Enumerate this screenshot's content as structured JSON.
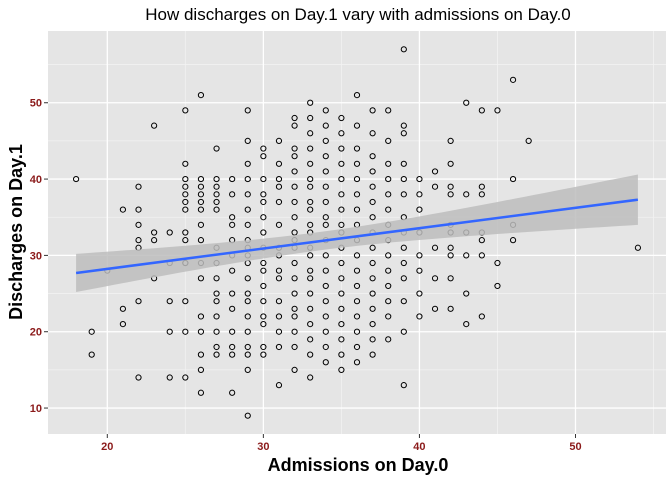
{
  "chart_data": {
    "type": "scatter",
    "title": "How discharges on Day.1 vary with admissions on Day.0",
    "xlabel": "Admissions on Day.0",
    "ylabel": "Discharges on Day.1",
    "xlim": [
      16.2,
      55.8
    ],
    "ylim": [
      6.6,
      59.4
    ],
    "xticks": [
      20,
      30,
      40,
      50
    ],
    "yticks": [
      10,
      20,
      30,
      40,
      50
    ],
    "grid": true,
    "legend": "none",
    "colors": {
      "panel": "#e5e5e5",
      "grid_major": "#ffffff",
      "point_stroke": "#000000",
      "fit_line": "#3366ff",
      "ribbon": "#bdbdbd",
      "tick_label": "#8b1a1a"
    },
    "fit": {
      "x": [
        18,
        54
      ],
      "y": [
        27.7,
        37.3
      ],
      "ci_lower": [
        25.2,
        34.0
      ],
      "ci_upper": [
        30.3,
        40.7
      ]
    },
    "points": [
      [
        18,
        40
      ],
      [
        19,
        20
      ],
      [
        19,
        17
      ],
      [
        20,
        28
      ],
      [
        21,
        36
      ],
      [
        21,
        23
      ],
      [
        21,
        21
      ],
      [
        22,
        39
      ],
      [
        22,
        36
      ],
      [
        22,
        34
      ],
      [
        22,
        32
      ],
      [
        22,
        31
      ],
      [
        22,
        24
      ],
      [
        22,
        14
      ],
      [
        23,
        47
      ],
      [
        23,
        33
      ],
      [
        23,
        32
      ],
      [
        23,
        27
      ],
      [
        24,
        33
      ],
      [
        24,
        24
      ],
      [
        24,
        20
      ],
      [
        24,
        14
      ],
      [
        24,
        29
      ],
      [
        25,
        49
      ],
      [
        25,
        42
      ],
      [
        25,
        40
      ],
      [
        25,
        39
      ],
      [
        25,
        38
      ],
      [
        25,
        37
      ],
      [
        25,
        36
      ],
      [
        25,
        33
      ],
      [
        25,
        32
      ],
      [
        25,
        29
      ],
      [
        25,
        24
      ],
      [
        25,
        20
      ],
      [
        25,
        14
      ],
      [
        25,
        29
      ],
      [
        26,
        51
      ],
      [
        26,
        40
      ],
      [
        26,
        39
      ],
      [
        26,
        38
      ],
      [
        26,
        37
      ],
      [
        26,
        36
      ],
      [
        26,
        34
      ],
      [
        26,
        32
      ],
      [
        26,
        29
      ],
      [
        26,
        27
      ],
      [
        26,
        22
      ],
      [
        26,
        20
      ],
      [
        26,
        17
      ],
      [
        26,
        15
      ],
      [
        26,
        12
      ],
      [
        27,
        44
      ],
      [
        27,
        40
      ],
      [
        27,
        39
      ],
      [
        27,
        38
      ],
      [
        27,
        37
      ],
      [
        27,
        36
      ],
      [
        27,
        31
      ],
      [
        27,
        29
      ],
      [
        27,
        27
      ],
      [
        27,
        25
      ],
      [
        27,
        24
      ],
      [
        27,
        22
      ],
      [
        27,
        20
      ],
      [
        27,
        18
      ],
      [
        27,
        17
      ],
      [
        28,
        40
      ],
      [
        28,
        38
      ],
      [
        28,
        35
      ],
      [
        28,
        34
      ],
      [
        28,
        32
      ],
      [
        28,
        30
      ],
      [
        28,
        28
      ],
      [
        28,
        25
      ],
      [
        28,
        23
      ],
      [
        28,
        20
      ],
      [
        28,
        18
      ],
      [
        28,
        17
      ],
      [
        28,
        12
      ],
      [
        29,
        49
      ],
      [
        29,
        45
      ],
      [
        29,
        42
      ],
      [
        29,
        40
      ],
      [
        29,
        38
      ],
      [
        29,
        36
      ],
      [
        29,
        34
      ],
      [
        29,
        32
      ],
      [
        29,
        31
      ],
      [
        29,
        30
      ],
      [
        29,
        29
      ],
      [
        29,
        27
      ],
      [
        29,
        25
      ],
      [
        29,
        24
      ],
      [
        29,
        22
      ],
      [
        29,
        20
      ],
      [
        29,
        18
      ],
      [
        29,
        17
      ],
      [
        29,
        15
      ],
      [
        29,
        9
      ],
      [
        30,
        44
      ],
      [
        30,
        43
      ],
      [
        30,
        40
      ],
      [
        30,
        38
      ],
      [
        30,
        37
      ],
      [
        30,
        35
      ],
      [
        30,
        33
      ],
      [
        30,
        31
      ],
      [
        30,
        29
      ],
      [
        30,
        28
      ],
      [
        30,
        26
      ],
      [
        30,
        24
      ],
      [
        30,
        22
      ],
      [
        30,
        21
      ],
      [
        30,
        18
      ],
      [
        30,
        17
      ],
      [
        31,
        45
      ],
      [
        31,
        42
      ],
      [
        31,
        40
      ],
      [
        31,
        39
      ],
      [
        31,
        37
      ],
      [
        31,
        34
      ],
      [
        31,
        31
      ],
      [
        31,
        30
      ],
      [
        31,
        28
      ],
      [
        31,
        27
      ],
      [
        31,
        24
      ],
      [
        31,
        22
      ],
      [
        31,
        20
      ],
      [
        31,
        18
      ],
      [
        31,
        13
      ],
      [
        32,
        48
      ],
      [
        32,
        47
      ],
      [
        32,
        44
      ],
      [
        32,
        43
      ],
      [
        32,
        41
      ],
      [
        32,
        39
      ],
      [
        32,
        37
      ],
      [
        32,
        35
      ],
      [
        32,
        33
      ],
      [
        32,
        32
      ],
      [
        32,
        31
      ],
      [
        32,
        29
      ],
      [
        32,
        27
      ],
      [
        32,
        25
      ],
      [
        32,
        23
      ],
      [
        32,
        22
      ],
      [
        32,
        20
      ],
      [
        32,
        18
      ],
      [
        32,
        15
      ],
      [
        33,
        50
      ],
      [
        33,
        48
      ],
      [
        33,
        46
      ],
      [
        33,
        44
      ],
      [
        33,
        42
      ],
      [
        33,
        40
      ],
      [
        33,
        39
      ],
      [
        33,
        37
      ],
      [
        33,
        36
      ],
      [
        33,
        34
      ],
      [
        33,
        33
      ],
      [
        33,
        31
      ],
      [
        33,
        30
      ],
      [
        33,
        28
      ],
      [
        33,
        27
      ],
      [
        33,
        25
      ],
      [
        33,
        23
      ],
      [
        33,
        21
      ],
      [
        33,
        19
      ],
      [
        33,
        17
      ],
      [
        33,
        14
      ],
      [
        34,
        49
      ],
      [
        34,
        47
      ],
      [
        34,
        45
      ],
      [
        34,
        43
      ],
      [
        34,
        41
      ],
      [
        34,
        39
      ],
      [
        34,
        37
      ],
      [
        34,
        35
      ],
      [
        34,
        34
      ],
      [
        34,
        32
      ],
      [
        34,
        30
      ],
      [
        34,
        28
      ],
      [
        34,
        26
      ],
      [
        34,
        24
      ],
      [
        34,
        22
      ],
      [
        34,
        20
      ],
      [
        34,
        18
      ],
      [
        34,
        16
      ],
      [
        35,
        48
      ],
      [
        35,
        46
      ],
      [
        35,
        44
      ],
      [
        35,
        42
      ],
      [
        35,
        40
      ],
      [
        35,
        38
      ],
      [
        35,
        36
      ],
      [
        35,
        34
      ],
      [
        35,
        33
      ],
      [
        35,
        31
      ],
      [
        35,
        29
      ],
      [
        35,
        27
      ],
      [
        35,
        25
      ],
      [
        35,
        23
      ],
      [
        35,
        21
      ],
      [
        35,
        19
      ],
      [
        35,
        17
      ],
      [
        35,
        15
      ],
      [
        36,
        51
      ],
      [
        36,
        47
      ],
      [
        36,
        44
      ],
      [
        36,
        42
      ],
      [
        36,
        40
      ],
      [
        36,
        38
      ],
      [
        36,
        36
      ],
      [
        36,
        34
      ],
      [
        36,
        32
      ],
      [
        36,
        30
      ],
      [
        36,
        28
      ],
      [
        36,
        26
      ],
      [
        36,
        24
      ],
      [
        36,
        22
      ],
      [
        36,
        20
      ],
      [
        36,
        18
      ],
      [
        36,
        16
      ],
      [
        37,
        49
      ],
      [
        37,
        46
      ],
      [
        37,
        43
      ],
      [
        37,
        41
      ],
      [
        37,
        39
      ],
      [
        37,
        37
      ],
      [
        37,
        35
      ],
      [
        37,
        33
      ],
      [
        37,
        31
      ],
      [
        37,
        29
      ],
      [
        37,
        27
      ],
      [
        37,
        25
      ],
      [
        37,
        23
      ],
      [
        37,
        21
      ],
      [
        37,
        19
      ],
      [
        37,
        17
      ],
      [
        38,
        49
      ],
      [
        38,
        45
      ],
      [
        38,
        42
      ],
      [
        38,
        40
      ],
      [
        38,
        38
      ],
      [
        38,
        36
      ],
      [
        38,
        34
      ],
      [
        38,
        32
      ],
      [
        38,
        30
      ],
      [
        38,
        28
      ],
      [
        38,
        26
      ],
      [
        38,
        24
      ],
      [
        38,
        22
      ],
      [
        38,
        19
      ],
      [
        39,
        57
      ],
      [
        39,
        47
      ],
      [
        39,
        46
      ],
      [
        39,
        42
      ],
      [
        39,
        40
      ],
      [
        39,
        38
      ],
      [
        39,
        35
      ],
      [
        39,
        33
      ],
      [
        39,
        31
      ],
      [
        39,
        29
      ],
      [
        39,
        27
      ],
      [
        39,
        24
      ],
      [
        39,
        20
      ],
      [
        39,
        13
      ],
      [
        40,
        40
      ],
      [
        40,
        38
      ],
      [
        40,
        36
      ],
      [
        40,
        33
      ],
      [
        40,
        30
      ],
      [
        40,
        28
      ],
      [
        40,
        25
      ],
      [
        40,
        22
      ],
      [
        41,
        41
      ],
      [
        41,
        39
      ],
      [
        41,
        31
      ],
      [
        41,
        27
      ],
      [
        41,
        23
      ],
      [
        42,
        45
      ],
      [
        42,
        42
      ],
      [
        42,
        39
      ],
      [
        42,
        38
      ],
      [
        42,
        34
      ],
      [
        42,
        33
      ],
      [
        42,
        31
      ],
      [
        42,
        30
      ],
      [
        42,
        27
      ],
      [
        42,
        23
      ],
      [
        43,
        50
      ],
      [
        43,
        38
      ],
      [
        43,
        33
      ],
      [
        43,
        30
      ],
      [
        43,
        25
      ],
      [
        43,
        21
      ],
      [
        44,
        49
      ],
      [
        44,
        39
      ],
      [
        44,
        38
      ],
      [
        44,
        33
      ],
      [
        44,
        32
      ],
      [
        44,
        30
      ],
      [
        44,
        22
      ],
      [
        45,
        49
      ],
      [
        45,
        29
      ],
      [
        45,
        26
      ],
      [
        46,
        53
      ],
      [
        46,
        40
      ],
      [
        46,
        34
      ],
      [
        46,
        32
      ],
      [
        47,
        45
      ],
      [
        54,
        31
      ]
    ]
  }
}
